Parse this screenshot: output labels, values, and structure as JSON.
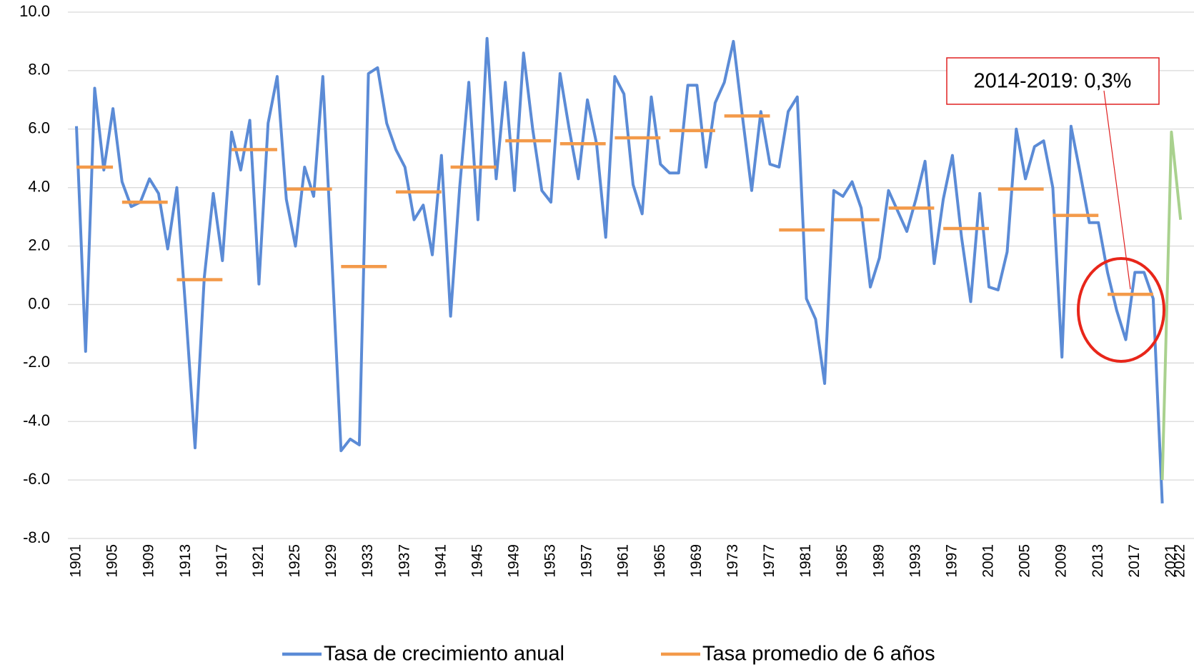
{
  "chart_data": {
    "type": "line",
    "annotation": "2014-2019: 0,3%",
    "ylim": [
      -8,
      10
    ],
    "yticks": [
      {
        "value": -8,
        "label": "-8.0"
      },
      {
        "value": -6,
        "label": "-6.0"
      },
      {
        "value": -4,
        "label": "-4.0"
      },
      {
        "value": -2,
        "label": "-2.0"
      },
      {
        "value": 0,
        "label": "0.0"
      },
      {
        "value": 2,
        "label": "2.0"
      },
      {
        "value": 4,
        "label": "4.0"
      },
      {
        "value": 6,
        "label": "6.0"
      },
      {
        "value": 8,
        "label": "8.0"
      },
      {
        "value": 10,
        "label": "10.0"
      }
    ],
    "xlim": [
      1901,
      2022
    ],
    "xticks": [
      1901,
      1905,
      1909,
      1913,
      1917,
      1921,
      1925,
      1929,
      1933,
      1937,
      1941,
      1945,
      1949,
      1953,
      1957,
      1961,
      1965,
      1969,
      1973,
      1977,
      1981,
      1985,
      1989,
      1993,
      1997,
      2001,
      2005,
      2009,
      2013,
      2017,
      2021,
      2022
    ],
    "grid": true,
    "series": [
      {
        "name": "Tasa de crecimiento anual",
        "color": "#5b8bd6",
        "x": [
          1901,
          1902,
          1903,
          1904,
          1905,
          1906,
          1907,
          1908,
          1909,
          1910,
          1911,
          1912,
          1913,
          1914,
          1915,
          1916,
          1917,
          1918,
          1919,
          1920,
          1921,
          1922,
          1923,
          1924,
          1925,
          1926,
          1927,
          1928,
          1929,
          1930,
          1931,
          1932,
          1933,
          1934,
          1935,
          1936,
          1937,
          1938,
          1939,
          1940,
          1941,
          1942,
          1943,
          1944,
          1945,
          1946,
          1947,
          1948,
          1949,
          1950,
          1951,
          1952,
          1953,
          1954,
          1955,
          1956,
          1957,
          1958,
          1959,
          1960,
          1961,
          1962,
          1963,
          1964,
          1965,
          1966,
          1967,
          1968,
          1969,
          1970,
          1971,
          1972,
          1973,
          1974,
          1975,
          1976,
          1977,
          1978,
          1979,
          1980,
          1981,
          1982,
          1983,
          1984,
          1985,
          1986,
          1987,
          1988,
          1989,
          1990,
          1991,
          1992,
          1993,
          1994,
          1995,
          1996,
          1997,
          1998,
          1999,
          2000,
          2001,
          2002,
          2003,
          2004,
          2005,
          2006,
          2007,
          2008,
          2009,
          2010,
          2011,
          2012,
          2013,
          2014,
          2015,
          2016,
          2017,
          2018,
          2019,
          2020
        ],
        "values": [
          6.1,
          -1.6,
          7.4,
          4.6,
          6.7,
          4.2,
          3.35,
          3.5,
          4.3,
          3.8,
          1.9,
          4.0,
          -0.3,
          -4.9,
          0.9,
          3.8,
          1.5,
          5.9,
          4.6,
          6.3,
          0.7,
          6.2,
          7.8,
          3.6,
          2.0,
          4.7,
          3.7,
          7.8,
          1.5,
          -5.0,
          -4.6,
          -4.8,
          7.9,
          8.1,
          6.2,
          5.3,
          4.7,
          2.9,
          3.4,
          1.7,
          5.1,
          -0.4,
          4.0,
          7.6,
          2.9,
          9.1,
          4.3,
          7.6,
          3.9,
          8.6,
          6.0,
          3.9,
          3.5,
          7.9,
          6.0,
          4.3,
          7.0,
          5.5,
          2.3,
          7.8,
          7.2,
          4.1,
          3.1,
          7.1,
          4.8,
          4.5,
          4.5,
          7.5,
          7.5,
          4.7,
          6.9,
          7.6,
          9.0,
          6.4,
          3.9,
          6.6,
          4.8,
          4.7,
          6.6,
          7.1,
          0.2,
          -0.5,
          -2.7,
          3.9,
          3.7,
          4.2,
          3.3,
          0.6,
          1.6,
          3.9,
          3.2,
          2.5,
          3.6,
          4.9,
          1.4,
          3.6,
          5.1,
          2.3,
          0.1,
          3.8,
          0.6,
          0.5,
          1.8,
          6.0,
          4.3,
          5.4,
          5.6,
          4.0,
          -1.8,
          6.1,
          4.5,
          2.8,
          2.8,
          1.1,
          -0.2,
          -1.2,
          1.1,
          1.1,
          0.2,
          -6.8
        ]
      },
      {
        "name": "Tasa promedio de 6 años",
        "color": "#f39a4a",
        "x": [
          1903,
          1908.5,
          1914.5,
          1920.5,
          1926.5,
          1932.5,
          1938.5,
          1944.5,
          1950.5,
          1956.5,
          1962.5,
          1968.5,
          1974.5,
          1980.5,
          1986.5,
          1992.5,
          1998.5,
          2004.5,
          2010.5,
          2016.5
        ],
        "values": [
          4.7,
          3.5,
          0.85,
          5.3,
          3.95,
          1.3,
          3.85,
          4.7,
          5.6,
          5.5,
          5.7,
          5.95,
          6.45,
          2.55,
          2.9,
          3.3,
          2.6,
          3.95,
          3.05,
          0.35
        ]
      },
      {
        "color": "#a9d18e",
        "x": [
          2020,
          2021,
          2022
        ],
        "values": [
          -6.0,
          5.9,
          2.9
        ]
      }
    ]
  }
}
